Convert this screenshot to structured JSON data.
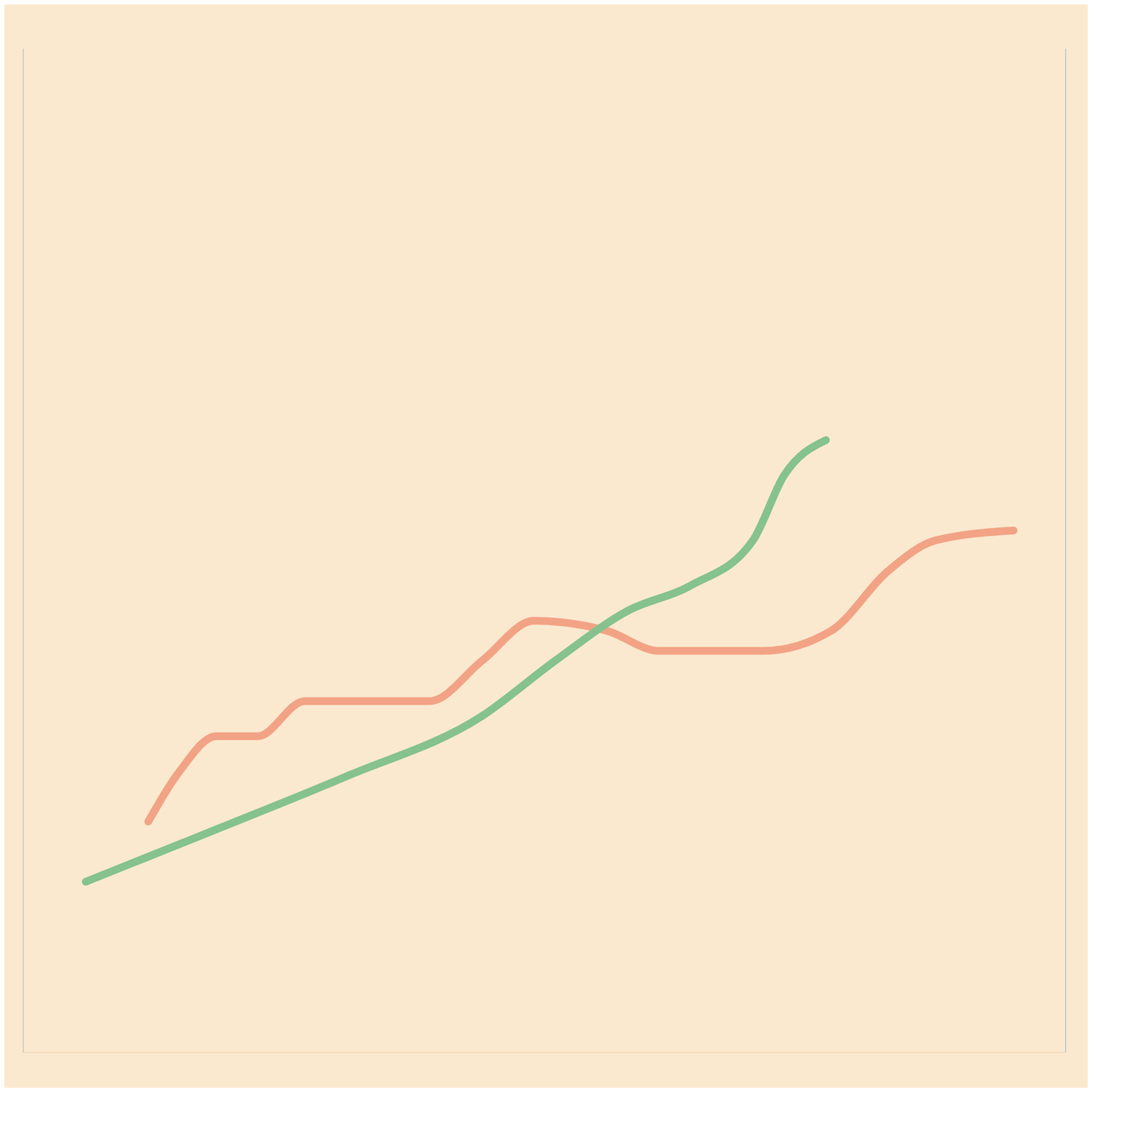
{
  "chart_data": {
    "type": "line",
    "xlim": [
      0,
      100
    ],
    "xticks": [
      0,
      5,
      10,
      15,
      20,
      25,
      30,
      35,
      40,
      45,
      50,
      55,
      60,
      65,
      70,
      75,
      80,
      85,
      90,
      95,
      100
    ],
    "ylim": [
      0,
      100
    ],
    "yticks": [
      0,
      100
    ],
    "grid": true,
    "tick_labels": false,
    "series": [
      {
        "color": "#f2a385",
        "x": [
          12,
          15,
          18.5,
          22.5,
          27,
          32.5,
          39,
          44,
          49,
          56,
          61,
          71,
          77.5,
          83,
          87.5,
          95
        ],
        "values": [
          23,
          28,
          31.5,
          31.5,
          35,
          35,
          35,
          39,
          43,
          42,
          40,
          40,
          42,
          48,
          51,
          52
        ]
      },
      {
        "color": "#86c28e",
        "x": [
          6,
          18,
          31,
          44,
          51,
          58,
          64,
          70,
          73,
          77
        ],
        "values": [
          17,
          22,
          27.5,
          33.5,
          39,
          44,
          46.5,
          51,
          57.5,
          61
        ]
      }
    ]
  }
}
